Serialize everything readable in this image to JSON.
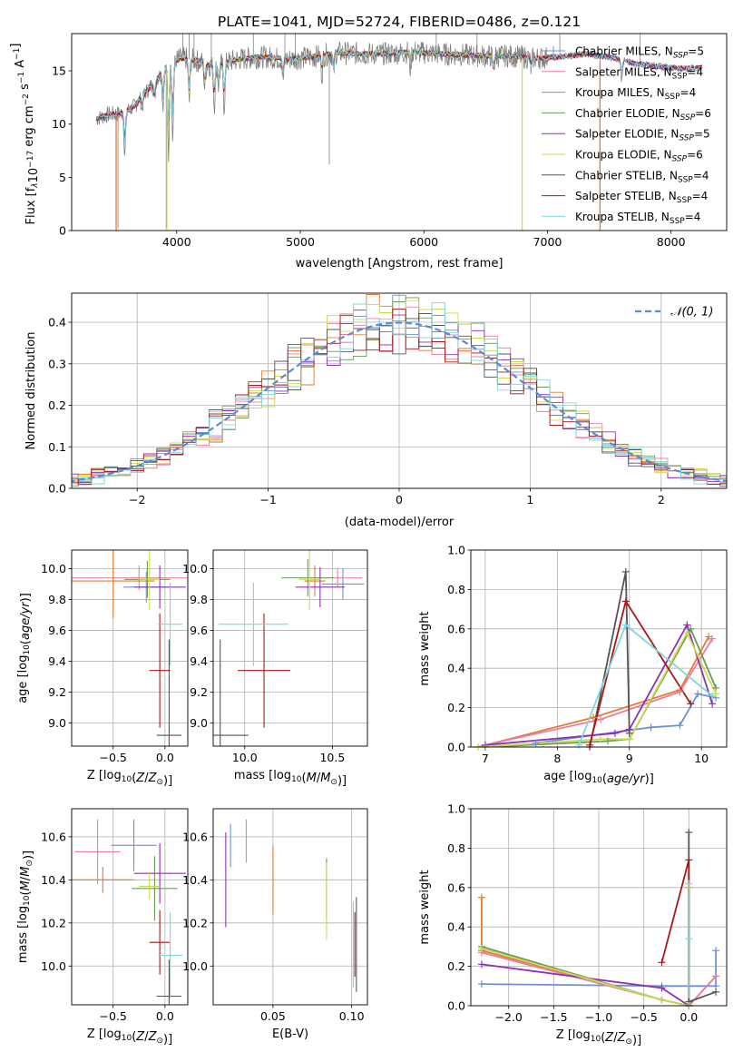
{
  "figure_title": "PLATE=1041, MJD=52724, FIBERID=0486, z=0.121",
  "models": [
    {
      "key": "cm",
      "label": "Chabrier MILES, N",
      "sub": "SSP",
      "suffix": "=5",
      "color": "#6f8fdc"
    },
    {
      "key": "sm",
      "label": "Salpeter MILES, N",
      "sub": "SSP",
      "suffix": "=4",
      "color": "#e87fa3"
    },
    {
      "key": "km",
      "label": "Kroupa MILES, N",
      "sub": "SSP",
      "suffix": "=4",
      "color": "#e37b34"
    },
    {
      "key": "ce",
      "label": "Chabrier ELODIE, N",
      "sub": "SSP",
      "suffix": "=6",
      "color": "#6a9a5a"
    },
    {
      "key": "se",
      "label": "Salpeter ELODIE, N",
      "sub": "SSP",
      "suffix": "=5",
      "color": "#8f2fb8"
    },
    {
      "key": "ke",
      "label": "Kroupa ELODIE, N",
      "sub": "SSP",
      "suffix": "=6",
      "color": "#c9dc4e"
    },
    {
      "key": "cs",
      "label": "Chabrier STELIB, N",
      "sub": "SSP",
      "suffix": "=4",
      "color": "#555555"
    },
    {
      "key": "ss",
      "label": "Salpeter STELIB, N",
      "sub": "SSP",
      "suffix": "=4",
      "color": "#a81818"
    },
    {
      "key": "ks",
      "label": "Kroupa STELIB, N",
      "sub": "SSP",
      "suffix": "=4",
      "color": "#7fd6dc"
    }
  ],
  "chart_data": [
    {
      "id": "spectrum",
      "type": "line",
      "xlabel": "wavelength [Angstrom, rest frame]",
      "ylabel_parts": [
        "Flux [f",
        "λ",
        "10",
        "−17",
        " erg cm",
        "−2",
        " s",
        "−1",
        " A",
        "−1",
        "]"
      ],
      "xlim": [
        3150,
        8450
      ],
      "ylim": [
        0,
        18.5
      ],
      "xticks": [
        4000,
        5000,
        6000,
        7000,
        8000
      ],
      "yticks": [
        0,
        5,
        10,
        15
      ],
      "grid": false,
      "legend": "right",
      "continuum": [
        [
          3350,
          10.5
        ],
        [
          3450,
          10.9
        ],
        [
          3550,
          11.0
        ],
        [
          3650,
          11.6
        ],
        [
          3750,
          13.0
        ],
        [
          3850,
          14.4
        ],
        [
          3950,
          15.8
        ],
        [
          4050,
          16.2
        ],
        [
          4150,
          16.0
        ],
        [
          4300,
          15.4
        ],
        [
          4500,
          16.1
        ],
        [
          4700,
          16.3
        ],
        [
          4900,
          16.1
        ],
        [
          5100,
          16.3
        ],
        [
          5300,
          16.7
        ],
        [
          5500,
          16.6
        ],
        [
          5700,
          16.6
        ],
        [
          5900,
          16.8
        ],
        [
          6100,
          16.6
        ],
        [
          6300,
          16.5
        ],
        [
          6500,
          16.4
        ],
        [
          6700,
          16.4
        ],
        [
          6900,
          16.2
        ],
        [
          7100,
          16.3
        ],
        [
          7300,
          16.6
        ],
        [
          7500,
          16.3
        ],
        [
          7700,
          15.7
        ],
        [
          7900,
          15.4
        ],
        [
          8100,
          15.2
        ],
        [
          8250,
          15.3
        ]
      ],
      "absorption": [
        [
          3580,
          7.0
        ],
        [
          3720,
          11.4
        ],
        [
          3820,
          12.3
        ],
        [
          3889,
          11.7
        ],
        [
          3934,
          6.8
        ],
        [
          3968,
          8.8
        ],
        [
          4101,
          12.0
        ],
        [
          4227,
          13.4
        ],
        [
          4304,
          11.8
        ],
        [
          4340,
          13.5
        ],
        [
          4384,
          11.6
        ],
        [
          4861,
          14.2
        ],
        [
          5175,
          14.7
        ],
        [
          5270,
          14.9
        ],
        [
          5890,
          15.3
        ],
        [
          6563,
          15.1
        ],
        [
          6867,
          15.2
        ],
        [
          7600,
          14.2
        ]
      ],
      "spikes": [
        [
          3525,
          0.2
        ],
        [
          3915,
          0.2
        ],
        [
          4050,
          18.5
        ],
        [
          4100,
          18.5
        ],
        [
          4140,
          18.5
        ],
        [
          4280,
          18.5
        ],
        [
          4620,
          18.5
        ],
        [
          4875,
          18.5
        ],
        [
          4960,
          18.5
        ],
        [
          5235,
          6.2
        ],
        [
          6100,
          18.5
        ],
        [
          6430,
          18.5
        ],
        [
          6795,
          0.2
        ],
        [
          7100,
          18.5
        ],
        [
          7425,
          0.2
        ],
        [
          7750,
          18.5
        ]
      ]
    },
    {
      "id": "residuals",
      "type": "histogram",
      "xlabel": "(data-model)/error",
      "ylabel": "Normed distribution",
      "xlim": [
        -2.5,
        2.5
      ],
      "ylim": [
        0,
        0.47
      ],
      "xticks": [
        -2,
        -1,
        0,
        1,
        2
      ],
      "yticks": [
        0.0,
        0.1,
        0.2,
        0.3,
        0.4
      ],
      "bin_width": 0.1,
      "grid": true,
      "reference": {
        "name": "N(0,1)",
        "label_math": "𝒩(0, 1)",
        "mean": 0,
        "sigma": 1,
        "color": "#5b8ad8"
      }
    },
    {
      "id": "age_Z",
      "type": "scatter",
      "error_bars": true,
      "xlabel": "Z [log10(Z/Z⊙)]",
      "ylabel": "age [log10(age/yr)]",
      "xlim": [
        -0.9,
        0.22
      ],
      "ylim": [
        8.85,
        10.12
      ],
      "xticks": [
        -0.5,
        0.0
      ],
      "yticks": [
        9.0,
        9.2,
        9.4,
        9.6,
        9.8,
        10.0
      ],
      "grid": true,
      "points": [
        {
          "m": "cm",
          "x": -0.18,
          "y": 9.88,
          "xe": 0.22,
          "ye": 0.1
        },
        {
          "m": "sm",
          "x": -0.25,
          "y": 9.94,
          "xe": 0.65,
          "ye": 0.08
        },
        {
          "m": "km",
          "x": -0.5,
          "y": 9.92,
          "xe": 0.4,
          "ye": 0.24
        },
        {
          "m": "ce",
          "x": -0.17,
          "y": 9.93,
          "xe": 0.22,
          "ye": 0.12
        },
        {
          "m": "se",
          "x": -0.05,
          "y": 9.88,
          "xe": 0.25,
          "ye": 0.14
        },
        {
          "m": "ke",
          "x": -0.15,
          "y": 9.93,
          "xe": 0.1,
          "ye": 0.2
        },
        {
          "m": "cs",
          "x": 0.04,
          "y": 8.92,
          "xe": 0.12,
          "ye": 0.62
        },
        {
          "m": "ss",
          "x": -0.05,
          "y": 9.34,
          "xe": 0.1,
          "ye": 0.37
        },
        {
          "m": "ks",
          "x": 0.05,
          "y": 9.64,
          "xe": 0.12,
          "ye": 0.27
        }
      ]
    },
    {
      "id": "age_mass",
      "type": "scatter",
      "error_bars": true,
      "xlabel": "mass [log10(M/M⊙)]",
      "ylabel": "",
      "xlim": [
        9.82,
        10.7
      ],
      "ylim": [
        8.85,
        10.12
      ],
      "xticks": [
        10.0,
        10.5
      ],
      "yticks": [
        9.0,
        9.2,
        9.4,
        9.6,
        9.8,
        10.0
      ],
      "grid": true,
      "points": [
        {
          "m": "cm",
          "x": 10.56,
          "y": 9.9,
          "xe": 0.12,
          "ye": 0.1
        },
        {
          "m": "sm",
          "x": 10.53,
          "y": 9.94,
          "xe": 0.14,
          "ye": 0.06
        },
        {
          "m": "km",
          "x": 10.4,
          "y": 9.92,
          "xe": 0.06,
          "ye": 0.1
        },
        {
          "m": "ce",
          "x": 10.36,
          "y": 9.94,
          "xe": 0.15,
          "ye": 0.12
        },
        {
          "m": "se",
          "x": 10.43,
          "y": 9.88,
          "xe": 0.14,
          "ye": 0.13
        },
        {
          "m": "ke",
          "x": 10.37,
          "y": 9.93,
          "xe": 0.06,
          "ye": 0.2
        },
        {
          "m": "cs",
          "x": 9.86,
          "y": 8.92,
          "xe": 0.16,
          "ye": 0.62
        },
        {
          "m": "ss",
          "x": 10.11,
          "y": 9.34,
          "xe": 0.15,
          "ye": 0.37
        },
        {
          "m": "ks",
          "x": 10.05,
          "y": 9.64,
          "xe": 0.2,
          "ye": 0.27
        }
      ]
    },
    {
      "id": "weight_age",
      "type": "line",
      "xlabel": "age [log10(age/yr)]",
      "ylabel": "mass weight",
      "xlim": [
        6.8,
        10.35
      ],
      "ylim": [
        0,
        1.0
      ],
      "xticks": [
        7,
        8,
        9,
        10
      ],
      "yticks": [
        0.0,
        0.2,
        0.4,
        0.6,
        0.8,
        1.0
      ],
      "grid": true,
      "series": [
        {
          "m": "cm",
          "x": [
            7.7,
            9.3,
            9.7,
            9.95,
            10.2
          ],
          "y": [
            0.02,
            0.1,
            0.11,
            0.27,
            0.25
          ]
        },
        {
          "m": "km",
          "x": [
            6.9,
            8.5,
            9.7,
            10.1
          ],
          "y": [
            0.0,
            0.15,
            0.29,
            0.56
          ]
        },
        {
          "m": "sm",
          "x": [
            7.0,
            8.6,
            9.7,
            10.15
          ],
          "y": [
            0.01,
            0.14,
            0.28,
            0.55
          ]
        },
        {
          "m": "se",
          "x": [
            7.0,
            8.8,
            9.0,
            9.8,
            10.15
          ],
          "y": [
            0.01,
            0.07,
            0.09,
            0.62,
            0.22
          ]
        },
        {
          "m": "ce",
          "x": [
            7.0,
            8.7,
            9.0,
            9.85,
            10.2
          ],
          "y": [
            0.0,
            0.03,
            0.04,
            0.6,
            0.3
          ]
        },
        {
          "m": "ke",
          "x": [
            6.9,
            8.6,
            9.0,
            9.8,
            10.2
          ],
          "y": [
            0.0,
            0.04,
            0.04,
            0.58,
            0.27
          ]
        },
        {
          "m": "cs",
          "x": [
            8.45,
            8.95,
            9.0
          ],
          "y": [
            0.0,
            0.89,
            0.07
          ]
        },
        {
          "m": "ss",
          "x": [
            8.45,
            8.95,
            9.85
          ],
          "y": [
            0.01,
            0.74,
            0.22
          ]
        },
        {
          "m": "ks",
          "x": [
            8.3,
            8.95,
            10.15
          ],
          "y": [
            0.01,
            0.62,
            0.26
          ]
        }
      ]
    },
    {
      "id": "mass_Z",
      "type": "scatter",
      "error_bars": true,
      "xlabel": "Z [log10(Z/Z⊙)]",
      "ylabel": "mass [log10(M/M⊙)]",
      "xlim": [
        -0.9,
        0.22
      ],
      "ylim": [
        9.82,
        10.73
      ],
      "xticks": [
        -0.5,
        0.0
      ],
      "yticks": [
        10.0,
        10.2,
        10.4,
        10.6
      ],
      "grid": true,
      "points": [
        {
          "m": "cm",
          "x": -0.3,
          "y": 10.56,
          "xe": 0.22,
          "ye": 0.12
        },
        {
          "m": "sm",
          "x": -0.65,
          "y": 10.53,
          "xe": 0.22,
          "ye": 0.15
        },
        {
          "m": "km",
          "x": -0.6,
          "y": 10.4,
          "xe": 0.3,
          "ye": 0.06
        },
        {
          "m": "ce",
          "x": -0.1,
          "y": 10.36,
          "xe": 0.22,
          "ye": 0.15
        },
        {
          "m": "se",
          "x": -0.05,
          "y": 10.43,
          "xe": 0.25,
          "ye": 0.14
        },
        {
          "m": "ke",
          "x": -0.15,
          "y": 10.37,
          "xe": 0.1,
          "ye": 0.06
        },
        {
          "m": "cs",
          "x": 0.04,
          "y": 9.86,
          "xe": 0.12,
          "ye": 0.17
        },
        {
          "m": "ss",
          "x": -0.05,
          "y": 10.11,
          "xe": 0.1,
          "ye": 0.15
        },
        {
          "m": "ks",
          "x": 0.05,
          "y": 10.05,
          "xe": 0.12,
          "ye": 0.2
        }
      ]
    },
    {
      "id": "mass_ebv",
      "type": "scatter",
      "error_bars": true,
      "xlabel": "E(B-V)",
      "ylabel": "",
      "xlim": [
        0.012,
        0.11
      ],
      "ylim": [
        9.82,
        10.73
      ],
      "xticks": [
        0.05,
        0.1
      ],
      "yticks": [
        10.0,
        10.2,
        10.4,
        10.6
      ],
      "grid": true,
      "points": [
        {
          "m": "cm",
          "x": 0.023,
          "y": 10.56,
          "xe": 0,
          "ye": 0.1
        },
        {
          "m": "sm",
          "x": 0.033,
          "y": 10.58,
          "xe": 0,
          "ye": 0.1
        },
        {
          "m": "km",
          "x": 0.05,
          "y": 10.4,
          "xe": 0,
          "ye": 0.16
        },
        {
          "m": "ce",
          "x": 0.084,
          "y": 10.36,
          "xe": 0,
          "ye": 0.14
        },
        {
          "m": "se",
          "x": 0.02,
          "y": 10.4,
          "xe": 0,
          "ye": 0.22
        },
        {
          "m": "ke",
          "x": 0.084,
          "y": 10.3,
          "xe": 0,
          "ye": 0.18
        },
        {
          "m": "cs",
          "x": 0.103,
          "y": 10.1,
          "xe": 0,
          "ye": 0.22
        },
        {
          "m": "ss",
          "x": 0.102,
          "y": 10.1,
          "xe": 0,
          "ye": 0.15
        },
        {
          "m": "ks",
          "x": 0.101,
          "y": 10.1,
          "xe": 0,
          "ye": 0.2
        }
      ]
    },
    {
      "id": "weight_Z",
      "type": "line",
      "xlabel": "Z [log10(Z/Z⊙)]",
      "ylabel": "mass weight",
      "xlim": [
        -2.42,
        0.42
      ],
      "ylim": [
        0,
        1.0
      ],
      "xticks": [
        -2.0,
        -1.5,
        -1.0,
        -0.5,
        0.0
      ],
      "yticks": [
        0.0,
        0.2,
        0.4,
        0.6,
        0.8,
        1.0
      ],
      "grid": true,
      "series": [
        {
          "m": "cm",
          "x": [
            -2.3,
            -0.3,
            0.3,
            0.3
          ],
          "y": [
            0.11,
            0.1,
            0.1,
            0.28
          ]
        },
        {
          "m": "km",
          "x": [
            -2.3,
            -2.3,
            -0.3,
            0.0,
            0.3
          ],
          "y": [
            0.55,
            0.28,
            0.03,
            0.0,
            0.15
          ]
        },
        {
          "m": "sm",
          "x": [
            -2.3,
            -0.3,
            0.0,
            0.3
          ],
          "y": [
            0.27,
            0.03,
            0.0,
            0.15
          ]
        },
        {
          "m": "se",
          "x": [
            -2.3,
            -0.3,
            0.0,
            0.0
          ],
          "y": [
            0.21,
            0.09,
            0.0,
            0.6
          ]
        },
        {
          "m": "ce",
          "x": [
            -2.3,
            -0.3,
            0.0,
            0.0
          ],
          "y": [
            0.3,
            0.03,
            0.0,
            0.6
          ]
        },
        {
          "m": "ke",
          "x": [
            -2.3,
            -0.3,
            0.0,
            0.0
          ],
          "y": [
            0.29,
            0.03,
            0.0,
            0.6
          ]
        },
        {
          "m": "cs",
          "x": [
            0.0,
            0.0,
            0.3
          ],
          "y": [
            0.88,
            0.02,
            0.07
          ]
        },
        {
          "m": "ss",
          "x": [
            -0.3,
            0.0,
            0.0
          ],
          "y": [
            0.22,
            0.74,
            0.0
          ]
        },
        {
          "m": "ks",
          "x": [
            0.0,
            0.0,
            0.0
          ],
          "y": [
            0.62,
            0.34,
            0.0
          ]
        }
      ]
    }
  ]
}
